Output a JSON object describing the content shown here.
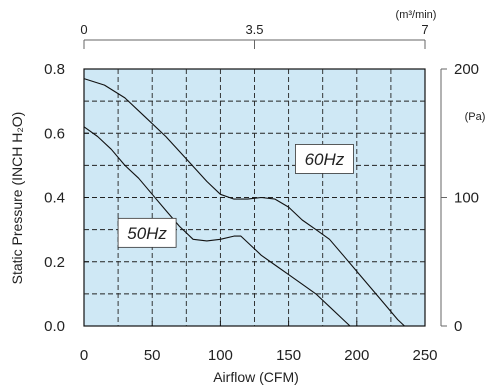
{
  "chart_data": {
    "type": "line",
    "xlabel": "Airflow (CFM)",
    "ylabel": "Static Pressure (INCH H₂O)",
    "xlim": [
      0,
      250
    ],
    "ylim": [
      0,
      0.8
    ],
    "x_ticks": [
      "0",
      "50",
      "100",
      "150",
      "200",
      "250"
    ],
    "y_ticks": [
      "0.0",
      "0.2",
      "0.4",
      "0.6",
      "0.8"
    ],
    "grid": true,
    "background": "#cfe8f5",
    "top_axis": {
      "unit": "(m³/min)",
      "lim": [
        0,
        7
      ],
      "ticks": [
        "0",
        "3.5",
        "7"
      ]
    },
    "right_axis": {
      "unit": "(Pa)",
      "lim": [
        0,
        200
      ],
      "ticks": [
        "0",
        "100",
        "200"
      ]
    },
    "series": [
      {
        "name": "60Hz",
        "x": [
          0,
          15,
          30,
          45,
          60,
          75,
          90,
          100,
          110,
          120,
          130,
          140,
          150,
          160,
          170,
          180,
          190,
          200,
          210,
          220,
          230,
          235
        ],
        "values": [
          0.77,
          0.75,
          0.71,
          0.65,
          0.59,
          0.52,
          0.45,
          0.41,
          0.395,
          0.395,
          0.4,
          0.395,
          0.37,
          0.33,
          0.3,
          0.27,
          0.22,
          0.17,
          0.12,
          0.07,
          0.02,
          0.0
        ]
      },
      {
        "name": "50Hz",
        "x": [
          0,
          10,
          20,
          30,
          40,
          50,
          60,
          70,
          80,
          90,
          100,
          110,
          115,
          120,
          130,
          140,
          150,
          160,
          170,
          180,
          190,
          195
        ],
        "values": [
          0.62,
          0.59,
          0.55,
          0.5,
          0.46,
          0.41,
          0.36,
          0.31,
          0.27,
          0.265,
          0.27,
          0.28,
          0.28,
          0.26,
          0.22,
          0.19,
          0.16,
          0.13,
          0.1,
          0.06,
          0.02,
          0.0
        ]
      }
    ]
  }
}
